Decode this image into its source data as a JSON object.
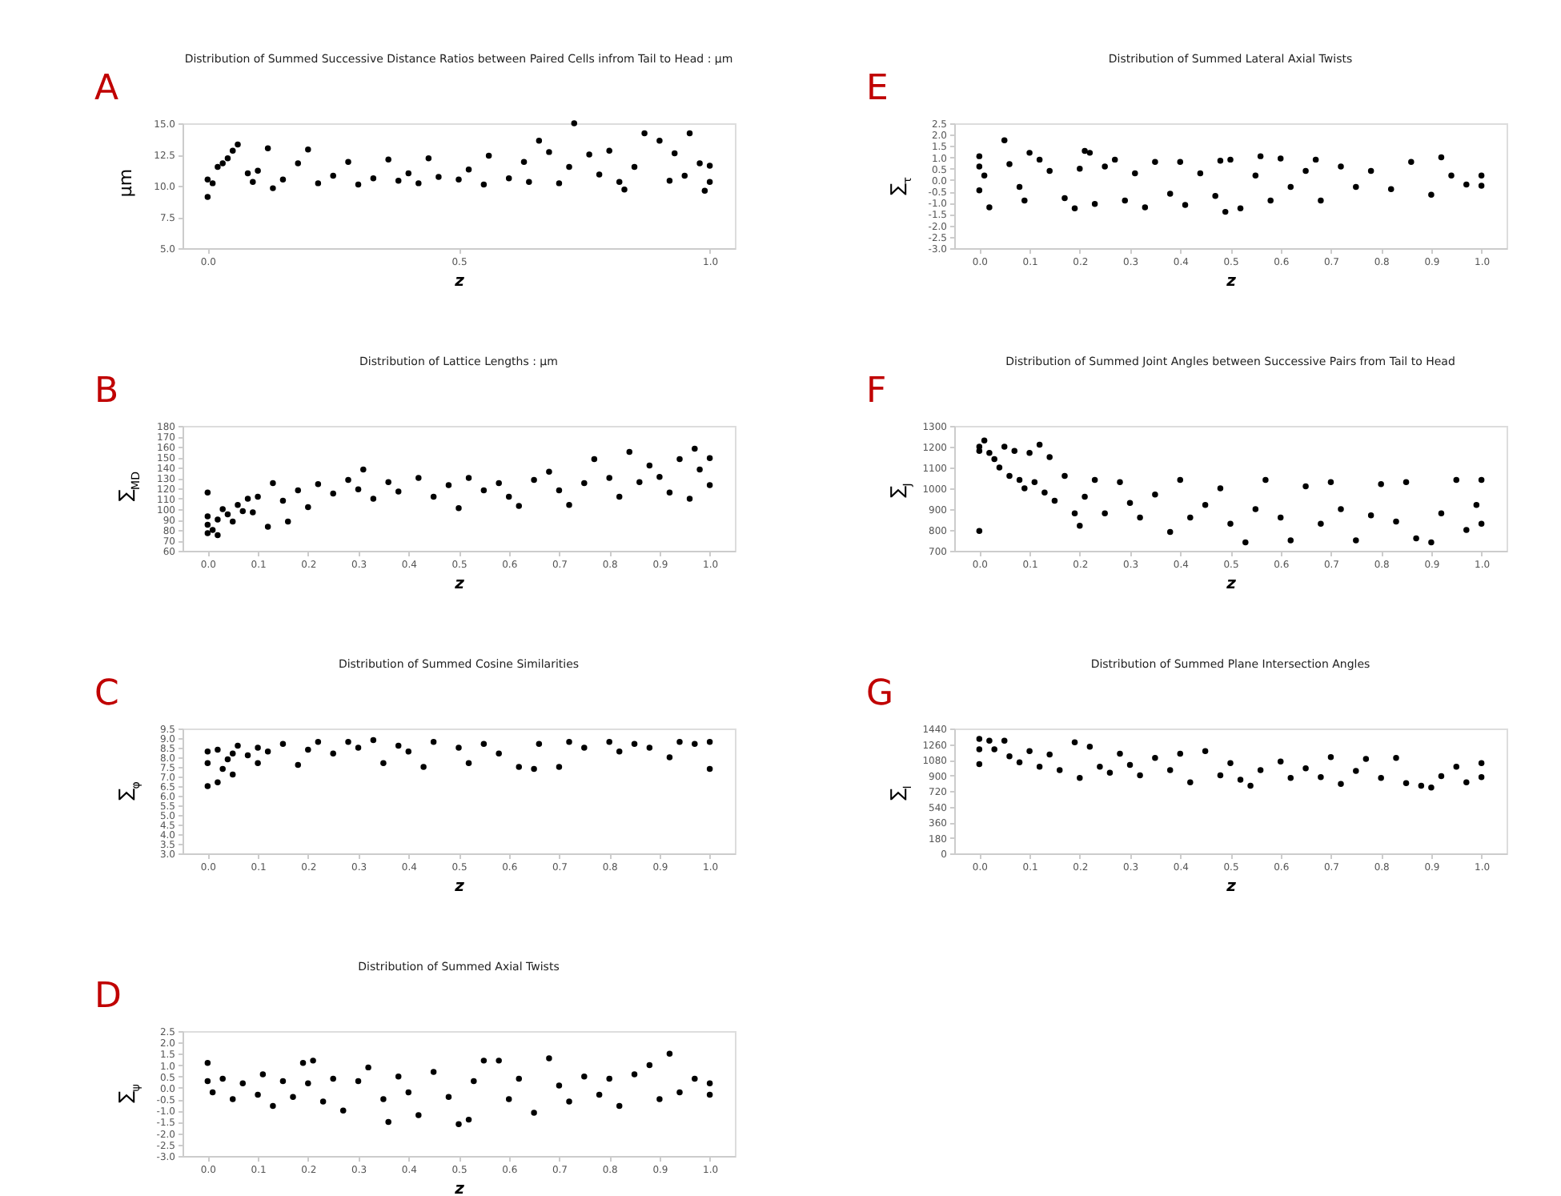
{
  "chart_data": [
    {
      "type": "scatter",
      "title": "Distribution of Summed Successive Distance Ratios between Paired Cells infrom Tail to Head : μm",
      "xlabel": "z",
      "ylabel": "μm",
      "annotations": [
        "A"
      ],
      "marker": "circle",
      "grid": false,
      "xlim": [
        -0.05,
        1.05
      ],
      "xticks": [
        {
          "value": 0,
          "label": "0.0"
        },
        {
          "value": 0.5,
          "label": "0.5"
        },
        {
          "value": 1,
          "label": "1.0"
        }
      ],
      "ylim": [
        5,
        15
      ],
      "yticks": [
        {
          "value": 5,
          "label": "5.0"
        },
        {
          "value": 7.5,
          "label": "7.5"
        },
        {
          "value": 10,
          "label": "10.0"
        },
        {
          "value": 12.5,
          "label": "12.5"
        },
        {
          "value": 15,
          "label": "15.0"
        }
      ],
      "series": [
        {
          "color": "#000000",
          "x": [
            0,
            0,
            0.01,
            0.02,
            0.03,
            0.04,
            0.05,
            0.06,
            0.08,
            0.09,
            0.1,
            0.12,
            0.13,
            0.15,
            0.18,
            0.2,
            0.22,
            0.25,
            0.28,
            0.3,
            0.33,
            0.36,
            0.38,
            0.4,
            0.42,
            0.44,
            0.46,
            0.5,
            0.52,
            0.55,
            0.56,
            0.6,
            0.63,
            0.64,
            0.66,
            0.68,
            0.7,
            0.72,
            0.73,
            0.76,
            0.78,
            0.8,
            0.82,
            0.83,
            0.85,
            0.87,
            0.9,
            0.92,
            0.93,
            0.95,
            0.96,
            0.98,
            1.0,
            1.0,
            0.99
          ],
          "values": [
            9.1,
            10.5,
            10.2,
            11.5,
            11.8,
            12.2,
            12.8,
            13.3,
            11,
            10.3,
            11.2,
            13,
            9.8,
            10.5,
            11.8,
            12.9,
            10.2,
            10.8,
            11.9,
            10.1,
            10.6,
            12.1,
            10.4,
            11,
            10.2,
            12.2,
            10.7,
            10.5,
            11.3,
            10.1,
            12.4,
            10.6,
            11.9,
            10.3,
            13.6,
            12.7,
            10.2,
            11.5,
            15.0,
            12.5,
            10.9,
            12.8,
            10.3,
            9.7,
            11.5,
            14.2,
            13.6,
            10.4,
            12.6,
            10.8,
            14.2,
            11.8,
            10.3,
            11.6,
            9.6
          ]
        }
      ]
    },
    {
      "type": "scatter",
      "title": "Distribution of Summed Lateral Axial Twists",
      "xlabel": "z",
      "ylabel": "∑$_{τ}$",
      "annotations": [
        "E"
      ],
      "marker": "circle",
      "grid": false,
      "xlim": [
        -0.05,
        1.05
      ],
      "xticks": [
        {
          "value": 0,
          "label": "0.0"
        },
        0.1,
        0.2,
        0.3,
        0.4,
        0.5,
        0.6,
        0.7,
        0.8,
        0.9,
        {
          "value": 1,
          "label": "1.0"
        }
      ],
      "ylim": [
        -3,
        2.5
      ],
      "yticks": [
        {
          "value": -3,
          "label": "-3.0"
        },
        -2.5,
        {
          "value": -2,
          "label": "-2.0"
        },
        -1.5,
        {
          "value": -1,
          "label": "-1.0"
        },
        -0.5,
        {
          "value": 0,
          "label": "0.0"
        },
        0.5,
        {
          "value": 1,
          "label": "1.0"
        },
        1.5,
        {
          "value": 2,
          "label": "2.0"
        },
        2.5
      ],
      "series": [
        {
          "color": "#000000",
          "x": [
            0,
            0,
            0,
            0.01,
            0.02,
            0.05,
            0.06,
            0.08,
            0.09,
            0.1,
            0.12,
            0.14,
            0.17,
            0.19,
            0.2,
            0.21,
            0.22,
            0.23,
            0.25,
            0.27,
            0.29,
            0.31,
            0.33,
            0.35,
            0.38,
            0.4,
            0.41,
            0.44,
            0.47,
            0.48,
            0.49,
            0.5,
            0.52,
            0.55,
            0.56,
            0.58,
            0.6,
            0.62,
            0.65,
            0.67,
            0.68,
            0.72,
            0.75,
            0.78,
            0.82,
            0.86,
            0.9,
            0.92,
            0.94,
            0.97,
            1.0,
            1.0
          ],
          "values": [
            1.05,
            0.6,
            -0.45,
            0.2,
            -1.2,
            1.75,
            0.7,
            -0.3,
            -0.9,
            1.2,
            0.9,
            0.4,
            -0.8,
            -1.25,
            0.5,
            1.28,
            1.2,
            -1.05,
            0.6,
            0.9,
            -0.9,
            0.3,
            -1.2,
            0.8,
            -0.6,
            0.8,
            -1.1,
            0.3,
            -0.7,
            0.85,
            -1.4,
            0.9,
            -1.25,
            0.2,
            1.05,
            -0.9,
            0.95,
            -0.3,
            0.4,
            0.9,
            -0.9,
            0.6,
            -0.3,
            0.4,
            -0.4,
            0.8,
            -0.65,
            1.0,
            0.2,
            -0.2,
            0.2,
            -0.25
          ]
        }
      ]
    },
    {
      "type": "scatter",
      "title": "Distribution of Lattice Lengths : μm",
      "xlabel": "z",
      "ylabel": "∑$_{MD}$",
      "annotations": [
        "B"
      ],
      "marker": "circle",
      "grid": false,
      "xlim": [
        -0.05,
        1.05
      ],
      "xticks": [
        {
          "value": 0,
          "label": "0.0"
        },
        0.1,
        0.2,
        0.3,
        0.4,
        0.5,
        0.6,
        0.7,
        0.8,
        0.9,
        {
          "value": 1,
          "label": "1.0"
        }
      ],
      "ylim": [
        60,
        180
      ],
      "yticks": [
        60,
        70,
        80,
        90,
        100,
        110,
        120,
        130,
        140,
        150,
        160,
        170,
        180
      ],
      "series": [
        {
          "color": "#000000",
          "x": [
            0,
            0,
            0,
            0,
            0.01,
            0.02,
            0.02,
            0.03,
            0.04,
            0.05,
            0.06,
            0.07,
            0.08,
            0.09,
            0.1,
            0.12,
            0.13,
            0.15,
            0.16,
            0.18,
            0.2,
            0.22,
            0.25,
            0.28,
            0.3,
            0.31,
            0.33,
            0.36,
            0.38,
            0.42,
            0.45,
            0.48,
            0.5,
            0.52,
            0.55,
            0.58,
            0.6,
            0.62,
            0.65,
            0.68,
            0.7,
            0.72,
            0.75,
            0.77,
            0.8,
            0.82,
            0.84,
            0.86,
            0.88,
            0.9,
            0.92,
            0.94,
            0.97,
            0.98,
            1.0,
            1.0,
            0.96
          ],
          "values": [
            77,
            85,
            93,
            116,
            80,
            75,
            90,
            100,
            95,
            88,
            104,
            98,
            110,
            97,
            112,
            83,
            125,
            108,
            88,
            118,
            102,
            124,
            115,
            128,
            119,
            138,
            110,
            126,
            117,
            130,
            112,
            123,
            101,
            130,
            118,
            125,
            112,
            103,
            128,
            136,
            118,
            104,
            125,
            148,
            130,
            112,
            155,
            126,
            142,
            131,
            116,
            148,
            158,
            138,
            123,
            149,
            110
          ]
        }
      ]
    },
    {
      "type": "scatter",
      "title": "Distribution of Summed Joint Angles between Successive Pairs from Tail to Head",
      "xlabel": "z",
      "ylabel": "∑$_{J}$",
      "annotations": [
        "F"
      ],
      "marker": "circle",
      "grid": false,
      "xlim": [
        -0.05,
        1.05
      ],
      "xticks": [
        {
          "value": 0,
          "label": "0.0"
        },
        0.1,
        0.2,
        0.3,
        0.4,
        0.5,
        0.6,
        0.7,
        0.8,
        0.9,
        {
          "value": 1,
          "label": "1.0"
        }
      ],
      "ylim": [
        700,
        1300
      ],
      "yticks": [
        700,
        800,
        900,
        1000,
        1100,
        1200,
        1300
      ],
      "series": [
        {
          "color": "#000000",
          "x": [
            0,
            0,
            0,
            0.01,
            0.02,
            0.03,
            0.04,
            0.05,
            0.06,
            0.07,
            0.08,
            0.09,
            0.1,
            0.11,
            0.12,
            0.13,
            0.14,
            0.15,
            0.17,
            0.19,
            0.2,
            0.21,
            0.23,
            0.25,
            0.28,
            0.3,
            0.32,
            0.35,
            0.38,
            0.4,
            0.42,
            0.45,
            0.48,
            0.5,
            0.53,
            0.55,
            0.57,
            0.6,
            0.62,
            0.65,
            0.68,
            0.7,
            0.72,
            0.75,
            0.78,
            0.8,
            0.83,
            0.85,
            0.87,
            0.9,
            0.92,
            0.95,
            0.97,
            1.0,
            1.0,
            0.99
          ],
          "values": [
            1200,
            1180,
            795,
            1230,
            1170,
            1140,
            1100,
            1200,
            1060,
            1180,
            1040,
            1000,
            1170,
            1030,
            1210,
            980,
            1150,
            940,
            1060,
            880,
            820,
            960,
            1040,
            880,
            1030,
            930,
            860,
            970,
            790,
            1040,
            860,
            920,
            1000,
            830,
            740,
            900,
            1040,
            860,
            750,
            1010,
            830,
            1030,
            900,
            750,
            870,
            1020,
            840,
            1030,
            760,
            740,
            880,
            1040,
            800,
            1040,
            830,
            920
          ]
        }
      ]
    },
    {
      "type": "scatter",
      "title": "Distribution of Summed Cosine Similarities",
      "xlabel": "z",
      "ylabel": "∑$_{φ}$",
      "annotations": [
        "C"
      ],
      "marker": "circle",
      "grid": false,
      "xlim": [
        -0.05,
        1.05
      ],
      "xticks": [
        {
          "value": 0,
          "label": "0.0"
        },
        0.1,
        0.2,
        0.3,
        0.4,
        0.5,
        0.6,
        0.7,
        0.8,
        0.9,
        {
          "value": 1,
          "label": "1.0"
        }
      ],
      "ylim": [
        3,
        9.5
      ],
      "yticks": [
        {
          "value": 3,
          "label": "3.0"
        },
        3.5,
        {
          "value": 4,
          "label": "4.0"
        },
        4.5,
        {
          "value": 5,
          "label": "5.0"
        },
        5.5,
        {
          "value": 6,
          "label": "6.0"
        },
        6.5,
        {
          "value": 7,
          "label": "7.0"
        },
        7.5,
        {
          "value": 8,
          "label": "8.0"
        },
        8.5,
        {
          "value": 9,
          "label": "9.0"
        },
        9.5
      ],
      "series": [
        {
          "color": "#000000",
          "x": [
            0,
            0,
            0,
            0.02,
            0.02,
            0.03,
            0.04,
            0.05,
            0.05,
            0.06,
            0.08,
            0.1,
            0.1,
            0.12,
            0.15,
            0.18,
            0.2,
            0.22,
            0.25,
            0.28,
            0.3,
            0.33,
            0.35,
            0.38,
            0.4,
            0.43,
            0.45,
            0.5,
            0.52,
            0.55,
            0.58,
            0.62,
            0.65,
            0.66,
            0.7,
            0.72,
            0.75,
            0.8,
            0.82,
            0.85,
            0.88,
            0.92,
            0.94,
            0.97,
            1.0,
            1.0
          ],
          "values": [
            6.5,
            7.7,
            8.3,
            6.7,
            8.4,
            7.4,
            7.9,
            7.1,
            8.2,
            8.6,
            8.1,
            7.7,
            8.5,
            8.3,
            8.7,
            7.6,
            8.4,
            8.8,
            8.2,
            8.8,
            8.5,
            8.9,
            7.7,
            8.6,
            8.3,
            7.5,
            8.8,
            8.5,
            7.7,
            8.7,
            8.2,
            7.5,
            7.4,
            8.7,
            7.5,
            8.8,
            8.5,
            8.8,
            8.3,
            8.7,
            8.5,
            8.0,
            8.8,
            8.7,
            7.4,
            8.8
          ]
        }
      ]
    },
    {
      "type": "scatter",
      "title": "Distribution of Summed Plane Intersection Angles",
      "xlabel": "z",
      "ylabel": "∑$_{I}$",
      "annotations": [
        "G"
      ],
      "marker": "circle",
      "grid": false,
      "xlim": [
        -0.05,
        1.05
      ],
      "xticks": [
        {
          "value": 0,
          "label": "0.0"
        },
        0.1,
        0.2,
        0.3,
        0.4,
        0.5,
        0.6,
        0.7,
        0.8,
        0.9,
        {
          "value": 1,
          "label": "1.0"
        }
      ],
      "ylim": [
        0,
        1440
      ],
      "yticks": [
        0,
        180,
        360,
        540,
        720,
        900,
        1080,
        1260,
        1440
      ],
      "series": [
        {
          "color": "#000000",
          "x": [
            0,
            0,
            0,
            0.02,
            0.03,
            0.05,
            0.06,
            0.08,
            0.1,
            0.12,
            0.14,
            0.16,
            0.19,
            0.2,
            0.22,
            0.24,
            0.26,
            0.28,
            0.3,
            0.32,
            0.35,
            0.38,
            0.4,
            0.42,
            0.45,
            0.48,
            0.5,
            0.52,
            0.54,
            0.56,
            0.6,
            0.62,
            0.65,
            0.68,
            0.7,
            0.72,
            0.75,
            0.77,
            0.8,
            0.83,
            0.85,
            0.88,
            0.9,
            0.92,
            0.95,
            0.97,
            1.0,
            1.0
          ],
          "values": [
            1320,
            1200,
            1030,
            1300,
            1200,
            1300,
            1120,
            1050,
            1180,
            1000,
            1140,
            960,
            1280,
            870,
            1230,
            1000,
            930,
            1150,
            1020,
            900,
            1100,
            960,
            1150,
            820,
            1180,
            900,
            1040,
            850,
            780,
            960,
            1060,
            870,
            980,
            880,
            1110,
            800,
            950,
            1090,
            870,
            1100,
            810,
            780,
            760,
            890,
            1000,
            820,
            1040,
            880
          ]
        }
      ]
    },
    {
      "type": "scatter",
      "title": "Distribution of Summed Axial Twists",
      "xlabel": "z",
      "ylabel": "∑$_{ψ}$",
      "annotations": [
        "D"
      ],
      "marker": "circle",
      "grid": false,
      "xlim": [
        -0.05,
        1.05
      ],
      "xticks": [
        {
          "value": 0,
          "label": "0.0"
        },
        0.1,
        0.2,
        0.3,
        0.4,
        0.5,
        0.6,
        0.7,
        0.8,
        0.9,
        {
          "value": 1,
          "label": "1.0"
        }
      ],
      "ylim": [
        -3,
        2.5
      ],
      "yticks": [
        {
          "value": -3,
          "label": "-3.0"
        },
        -2.5,
        {
          "value": -2,
          "label": "-2.0"
        },
        -1.5,
        {
          "value": -1,
          "label": "-1.0"
        },
        -0.5,
        {
          "value": 0,
          "label": "0.0"
        },
        0.5,
        {
          "value": 1,
          "label": "1.0"
        },
        1.5,
        {
          "value": 2,
          "label": "2.0"
        },
        2.5
      ],
      "series": [
        {
          "color": "#000000",
          "x": [
            0,
            0,
            0.01,
            0.03,
            0.05,
            0.07,
            0.1,
            0.11,
            0.13,
            0.15,
            0.17,
            0.19,
            0.2,
            0.21,
            0.23,
            0.25,
            0.27,
            0.3,
            0.32,
            0.35,
            0.36,
            0.38,
            0.4,
            0.42,
            0.45,
            0.48,
            0.5,
            0.52,
            0.53,
            0.55,
            0.58,
            0.6,
            0.62,
            0.65,
            0.68,
            0.7,
            0.72,
            0.75,
            0.78,
            0.8,
            0.82,
            0.85,
            0.88,
            0.9,
            0.92,
            0.94,
            0.97,
            1.0,
            1.0
          ],
          "values": [
            1.1,
            0.3,
            -0.2,
            0.4,
            -0.5,
            0.2,
            -0.3,
            0.6,
            -0.8,
            0.3,
            -0.4,
            1.1,
            0.2,
            1.2,
            -0.6,
            0.4,
            -1.0,
            0.3,
            0.9,
            -0.5,
            -1.5,
            0.5,
            -0.2,
            -1.2,
            0.7,
            -0.4,
            -1.6,
            -1.4,
            0.3,
            1.2,
            1.2,
            -0.5,
            0.4,
            -1.1,
            1.3,
            0.1,
            -0.6,
            0.5,
            -0.3,
            0.4,
            -0.8,
            0.6,
            1.0,
            -0.5,
            1.5,
            -0.2,
            0.4,
            -0.3,
            0.2
          ]
        }
      ]
    }
  ]
}
